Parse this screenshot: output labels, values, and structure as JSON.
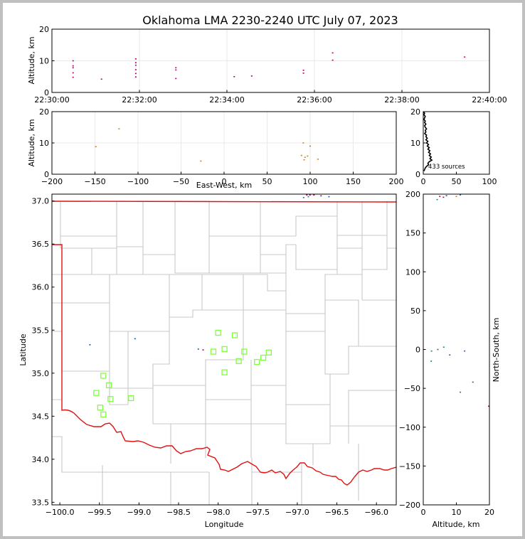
{
  "title": "Oklahoma LMA 2230-2240 UTC July 07, 2023",
  "colors": {
    "background": "#ffffff",
    "boundary": "#e01010",
    "station": "#7fff3f",
    "county": "#c8c8c8",
    "frame": "#c0c0c0"
  },
  "chart_data": [
    {
      "id": "time_altitude",
      "type": "scatter",
      "ylabel": "Altitude, km",
      "xlim": [
        "22:30:00",
        "22:40:00"
      ],
      "ylim": [
        0,
        20
      ],
      "xticks": [
        "22:30:00",
        "22:32:00",
        "22:34:00",
        "22:36:00",
        "22:38:00",
        "22:40:00"
      ],
      "yticks": [
        "0",
        "10",
        "20"
      ],
      "grid": true,
      "points": [
        {
          "t": "22:30:29",
          "alt": 10.0,
          "color": "#b0006a"
        },
        {
          "t": "22:30:29",
          "alt": 8.4,
          "color": "#b0006a"
        },
        {
          "t": "22:30:29",
          "alt": 7.8,
          "color": "#b0006a"
        },
        {
          "t": "22:30:29",
          "alt": 6.2,
          "color": "#b0006a"
        },
        {
          "t": "22:30:29",
          "alt": 4.8,
          "color": "#b0006a"
        },
        {
          "t": "22:31:08",
          "alt": 4.2,
          "color": "#8a0d8a"
        },
        {
          "t": "22:31:55",
          "alt": 10.6,
          "color": "#b0006a"
        },
        {
          "t": "22:31:55",
          "alt": 9.4,
          "color": "#b0006a"
        },
        {
          "t": "22:31:55",
          "alt": 8.6,
          "color": "#b0006a"
        },
        {
          "t": "22:31:55",
          "alt": 7.2,
          "color": "#b0006a"
        },
        {
          "t": "22:31:55",
          "alt": 6.0,
          "color": "#b0006a"
        },
        {
          "t": "22:31:55",
          "alt": 4.9,
          "color": "#b0006a"
        },
        {
          "t": "22:32:50",
          "alt": 7.8,
          "color": "#b0006a"
        },
        {
          "t": "22:32:50",
          "alt": 7.1,
          "color": "#b0006a"
        },
        {
          "t": "22:32:50",
          "alt": 4.4,
          "color": "#b0006a"
        },
        {
          "t": "22:34:10",
          "alt": 5.0,
          "color": "#8a0d8a"
        },
        {
          "t": "22:34:34",
          "alt": 5.2,
          "color": "#8a0d8a"
        },
        {
          "t": "22:35:45",
          "alt": 7.0,
          "color": "#b0006a"
        },
        {
          "t": "22:35:45",
          "alt": 6.1,
          "color": "#b0006a"
        },
        {
          "t": "22:36:25",
          "alt": 12.5,
          "color": "#c0003f"
        },
        {
          "t": "22:36:25",
          "alt": 10.2,
          "color": "#c0003f"
        },
        {
          "t": "22:39:26",
          "alt": 11.2,
          "color": "#e0006a"
        }
      ]
    },
    {
      "id": "ew_altitude",
      "type": "scatter",
      "xlabel": "East-West, km",
      "ylabel": "Altitude, km",
      "xlim": [
        -200,
        200
      ],
      "ylim": [
        0,
        20
      ],
      "xticks": [
        "−200",
        "−150",
        "−100",
        "−50",
        "0",
        "50",
        "100",
        "150",
        "200"
      ],
      "yticks": [
        "0",
        "10",
        "20"
      ],
      "grid": true,
      "points": [
        {
          "x": -122,
          "alt": 14.5,
          "color": "#d08020"
        },
        {
          "x": -149,
          "alt": 8.8,
          "color": "#d08020"
        },
        {
          "x": -27,
          "alt": 4.2,
          "color": "#d08020"
        },
        {
          "x": 92,
          "alt": 10.0,
          "color": "#d08020"
        },
        {
          "x": 100,
          "alt": 9.0,
          "color": "#d08020"
        },
        {
          "x": 90,
          "alt": 6.0,
          "color": "#d08020"
        },
        {
          "x": 94,
          "alt": 5.4,
          "color": "#d08020"
        },
        {
          "x": 97,
          "alt": 5.8,
          "color": "#d08020"
        },
        {
          "x": 93,
          "alt": 4.6,
          "color": "#d08020"
        },
        {
          "x": 109,
          "alt": 4.8,
          "color": "#d08020"
        }
      ]
    },
    {
      "id": "altitude_histogram",
      "type": "line",
      "xlim": [
        0,
        100
      ],
      "ylim": [
        0,
        20
      ],
      "xticks": [
        "0",
        "50",
        "100"
      ],
      "yticks": [
        "0",
        "10",
        "20"
      ],
      "annotation": "433 sources",
      "profile": [
        {
          "alt": 20,
          "count": 0
        },
        {
          "alt": 19.5,
          "count": 2
        },
        {
          "alt": 19,
          "count": 1
        },
        {
          "alt": 18.5,
          "count": 3
        },
        {
          "alt": 18,
          "count": 2
        },
        {
          "alt": 17.5,
          "count": 1
        },
        {
          "alt": 17,
          "count": 3
        },
        {
          "alt": 16.5,
          "count": 2
        },
        {
          "alt": 16,
          "count": 4
        },
        {
          "alt": 15.5,
          "count": 2
        },
        {
          "alt": 15,
          "count": 3
        },
        {
          "alt": 14.5,
          "count": 5
        },
        {
          "alt": 14,
          "count": 3
        },
        {
          "alt": 13.5,
          "count": 4
        },
        {
          "alt": 13,
          "count": 2
        },
        {
          "alt": 12.5,
          "count": 5
        },
        {
          "alt": 12,
          "count": 4
        },
        {
          "alt": 11.5,
          "count": 6
        },
        {
          "alt": 11,
          "count": 4
        },
        {
          "alt": 10.5,
          "count": 7
        },
        {
          "alt": 10,
          "count": 5
        },
        {
          "alt": 9.5,
          "count": 8
        },
        {
          "alt": 9,
          "count": 6
        },
        {
          "alt": 8.5,
          "count": 9
        },
        {
          "alt": 8,
          "count": 7
        },
        {
          "alt": 7.5,
          "count": 10
        },
        {
          "alt": 7,
          "count": 8
        },
        {
          "alt": 6.5,
          "count": 11
        },
        {
          "alt": 6,
          "count": 9
        },
        {
          "alt": 5.5,
          "count": 12
        },
        {
          "alt": 5,
          "count": 10
        },
        {
          "alt": 4.5,
          "count": 13
        },
        {
          "alt": 4,
          "count": 9
        },
        {
          "alt": 3.5,
          "count": 7
        },
        {
          "alt": 3,
          "count": 8
        },
        {
          "alt": 2.5,
          "count": 5
        },
        {
          "alt": 2,
          "count": 3
        },
        {
          "alt": 1.5,
          "count": 2
        },
        {
          "alt": 1,
          "count": 1
        }
      ]
    },
    {
      "id": "plan_view",
      "type": "scatter",
      "xlabel": "Longitude",
      "ylabel": "Latitude",
      "xlim": [
        -100.1,
        -95.75
      ],
      "ylim": [
        33.47,
        37.08
      ],
      "xticks": [
        "−100.0",
        "−99.5",
        "−99.0",
        "−98.5",
        "−98.0",
        "−97.5",
        "−97.0",
        "−96.5",
        "−96.0"
      ],
      "yticks": [
        "33.5",
        "34.0",
        "34.5",
        "35.0",
        "35.5",
        "36.0",
        "36.5",
        "37.0"
      ],
      "stations": [
        {
          "lon": -98.0,
          "lat": 35.47
        },
        {
          "lon": -97.79,
          "lat": 35.44
        },
        {
          "lon": -97.92,
          "lat": 35.28
        },
        {
          "lon": -98.06,
          "lat": 35.25
        },
        {
          "lon": -97.67,
          "lat": 35.25
        },
        {
          "lon": -97.36,
          "lat": 35.24
        },
        {
          "lon": -97.43,
          "lat": 35.18
        },
        {
          "lon": -97.74,
          "lat": 35.14
        },
        {
          "lon": -97.51,
          "lat": 35.13
        },
        {
          "lon": -97.92,
          "lat": 35.01
        },
        {
          "lon": -99.45,
          "lat": 34.97
        },
        {
          "lon": -99.38,
          "lat": 34.86
        },
        {
          "lon": -99.54,
          "lat": 34.77
        },
        {
          "lon": -99.36,
          "lat": 34.7
        },
        {
          "lon": -99.1,
          "lat": 34.71
        },
        {
          "lon": -99.49,
          "lat": 34.6
        },
        {
          "lon": -99.45,
          "lat": 34.52
        }
      ],
      "sources": [
        {
          "lon": -96.88,
          "lat": 37.07,
          "color": "#c0003f"
        },
        {
          "lon": -96.84,
          "lat": 37.07,
          "color": "#b0006a"
        },
        {
          "lon": -96.79,
          "lat": 37.07,
          "color": "#c0003f"
        },
        {
          "lon": -96.7,
          "lat": 37.06,
          "color": "#b0006a"
        },
        {
          "lon": -96.92,
          "lat": 37.04,
          "color": "#3a5fcd"
        },
        {
          "lon": -96.86,
          "lat": 37.05,
          "color": "#1e7f8a"
        },
        {
          "lon": -96.6,
          "lat": 37.05,
          "color": "#2060a0"
        },
        {
          "lon": -98.25,
          "lat": 35.28,
          "color": "#2060a0"
        },
        {
          "lon": -98.19,
          "lat": 35.27,
          "color": "#b0006a"
        },
        {
          "lon": -99.62,
          "lat": 35.33,
          "color": "#2060a0"
        },
        {
          "lon": -99.05,
          "lat": 35.4,
          "color": "#2060a0"
        }
      ]
    },
    {
      "id": "altitude_ns",
      "type": "scatter",
      "xlabel": "Altitude, km",
      "ylabel": "North-South, km",
      "xlim": [
        0,
        20
      ],
      "ylim": [
        -200,
        200
      ],
      "xticks": [
        "0",
        "10",
        "20"
      ],
      "yticks": [
        "−200",
        "−150",
        "−100",
        "−50",
        "0",
        "50",
        "100",
        "150",
        "200"
      ],
      "points": [
        {
          "alt": 4.2,
          "ns": 193,
          "color": "#1e7f8a"
        },
        {
          "alt": 5.0,
          "ns": 197,
          "color": "#c0003f"
        },
        {
          "alt": 6.1,
          "ns": 196,
          "color": "#b0006a"
        },
        {
          "alt": 7.0,
          "ns": 198,
          "color": "#2060a0"
        },
        {
          "alt": 10.0,
          "ns": 197,
          "color": "#d08020"
        },
        {
          "alt": 11.2,
          "ns": 199,
          "color": "#2060a0"
        },
        {
          "alt": 2.5,
          "ns": -2,
          "color": "#1e7f8a"
        },
        {
          "alt": 4.4,
          "ns": 0,
          "color": "#2060a0"
        },
        {
          "alt": 2.4,
          "ns": -15,
          "color": "#1e7f8a"
        },
        {
          "alt": 6.2,
          "ns": 3,
          "color": "#1e7f8a"
        },
        {
          "alt": 8.0,
          "ns": -7,
          "color": "#2060a0"
        },
        {
          "alt": 12.5,
          "ns": -2,
          "color": "#2060a0"
        },
        {
          "alt": 11.2,
          "ns": -55,
          "color": "#1e7f8a"
        },
        {
          "alt": 15.0,
          "ns": -42,
          "color": "#2060a0"
        },
        {
          "alt": 19.8,
          "ns": -73,
          "color": "#b0006a"
        }
      ]
    }
  ]
}
